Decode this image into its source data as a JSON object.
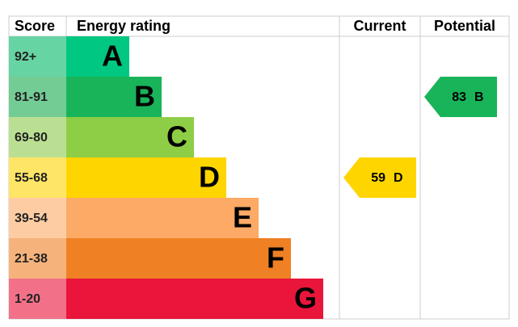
{
  "header": {
    "score": "Score",
    "rating": "Energy rating",
    "current": "Current",
    "potential": "Potential"
  },
  "bands": [
    {
      "score": "92+",
      "rating": "A",
      "color": "#00c781",
      "score_color": "#66d4a3"
    },
    {
      "score": "81-91",
      "rating": "B",
      "color": "#19b459",
      "score_color": "#73cc94"
    },
    {
      "score": "69-80",
      "rating": "C",
      "color": "#8dce46",
      "score_color": "#badf92"
    },
    {
      "score": "55-68",
      "rating": "D",
      "color": "#ffd500",
      "score_color": "#ffe566"
    },
    {
      "score": "39-54",
      "rating": "E",
      "color": "#fcaa65",
      "score_color": "#fdcca3"
    },
    {
      "score": "21-38",
      "rating": "F",
      "color": "#ef8023",
      "score_color": "#f5b37b"
    },
    {
      "score": "1-20",
      "rating": "G",
      "color": "#e9153b",
      "score_color": "#f27189"
    }
  ],
  "current": {
    "value": 59,
    "rating": "D"
  },
  "potential": {
    "value": 83,
    "rating": "B"
  }
}
